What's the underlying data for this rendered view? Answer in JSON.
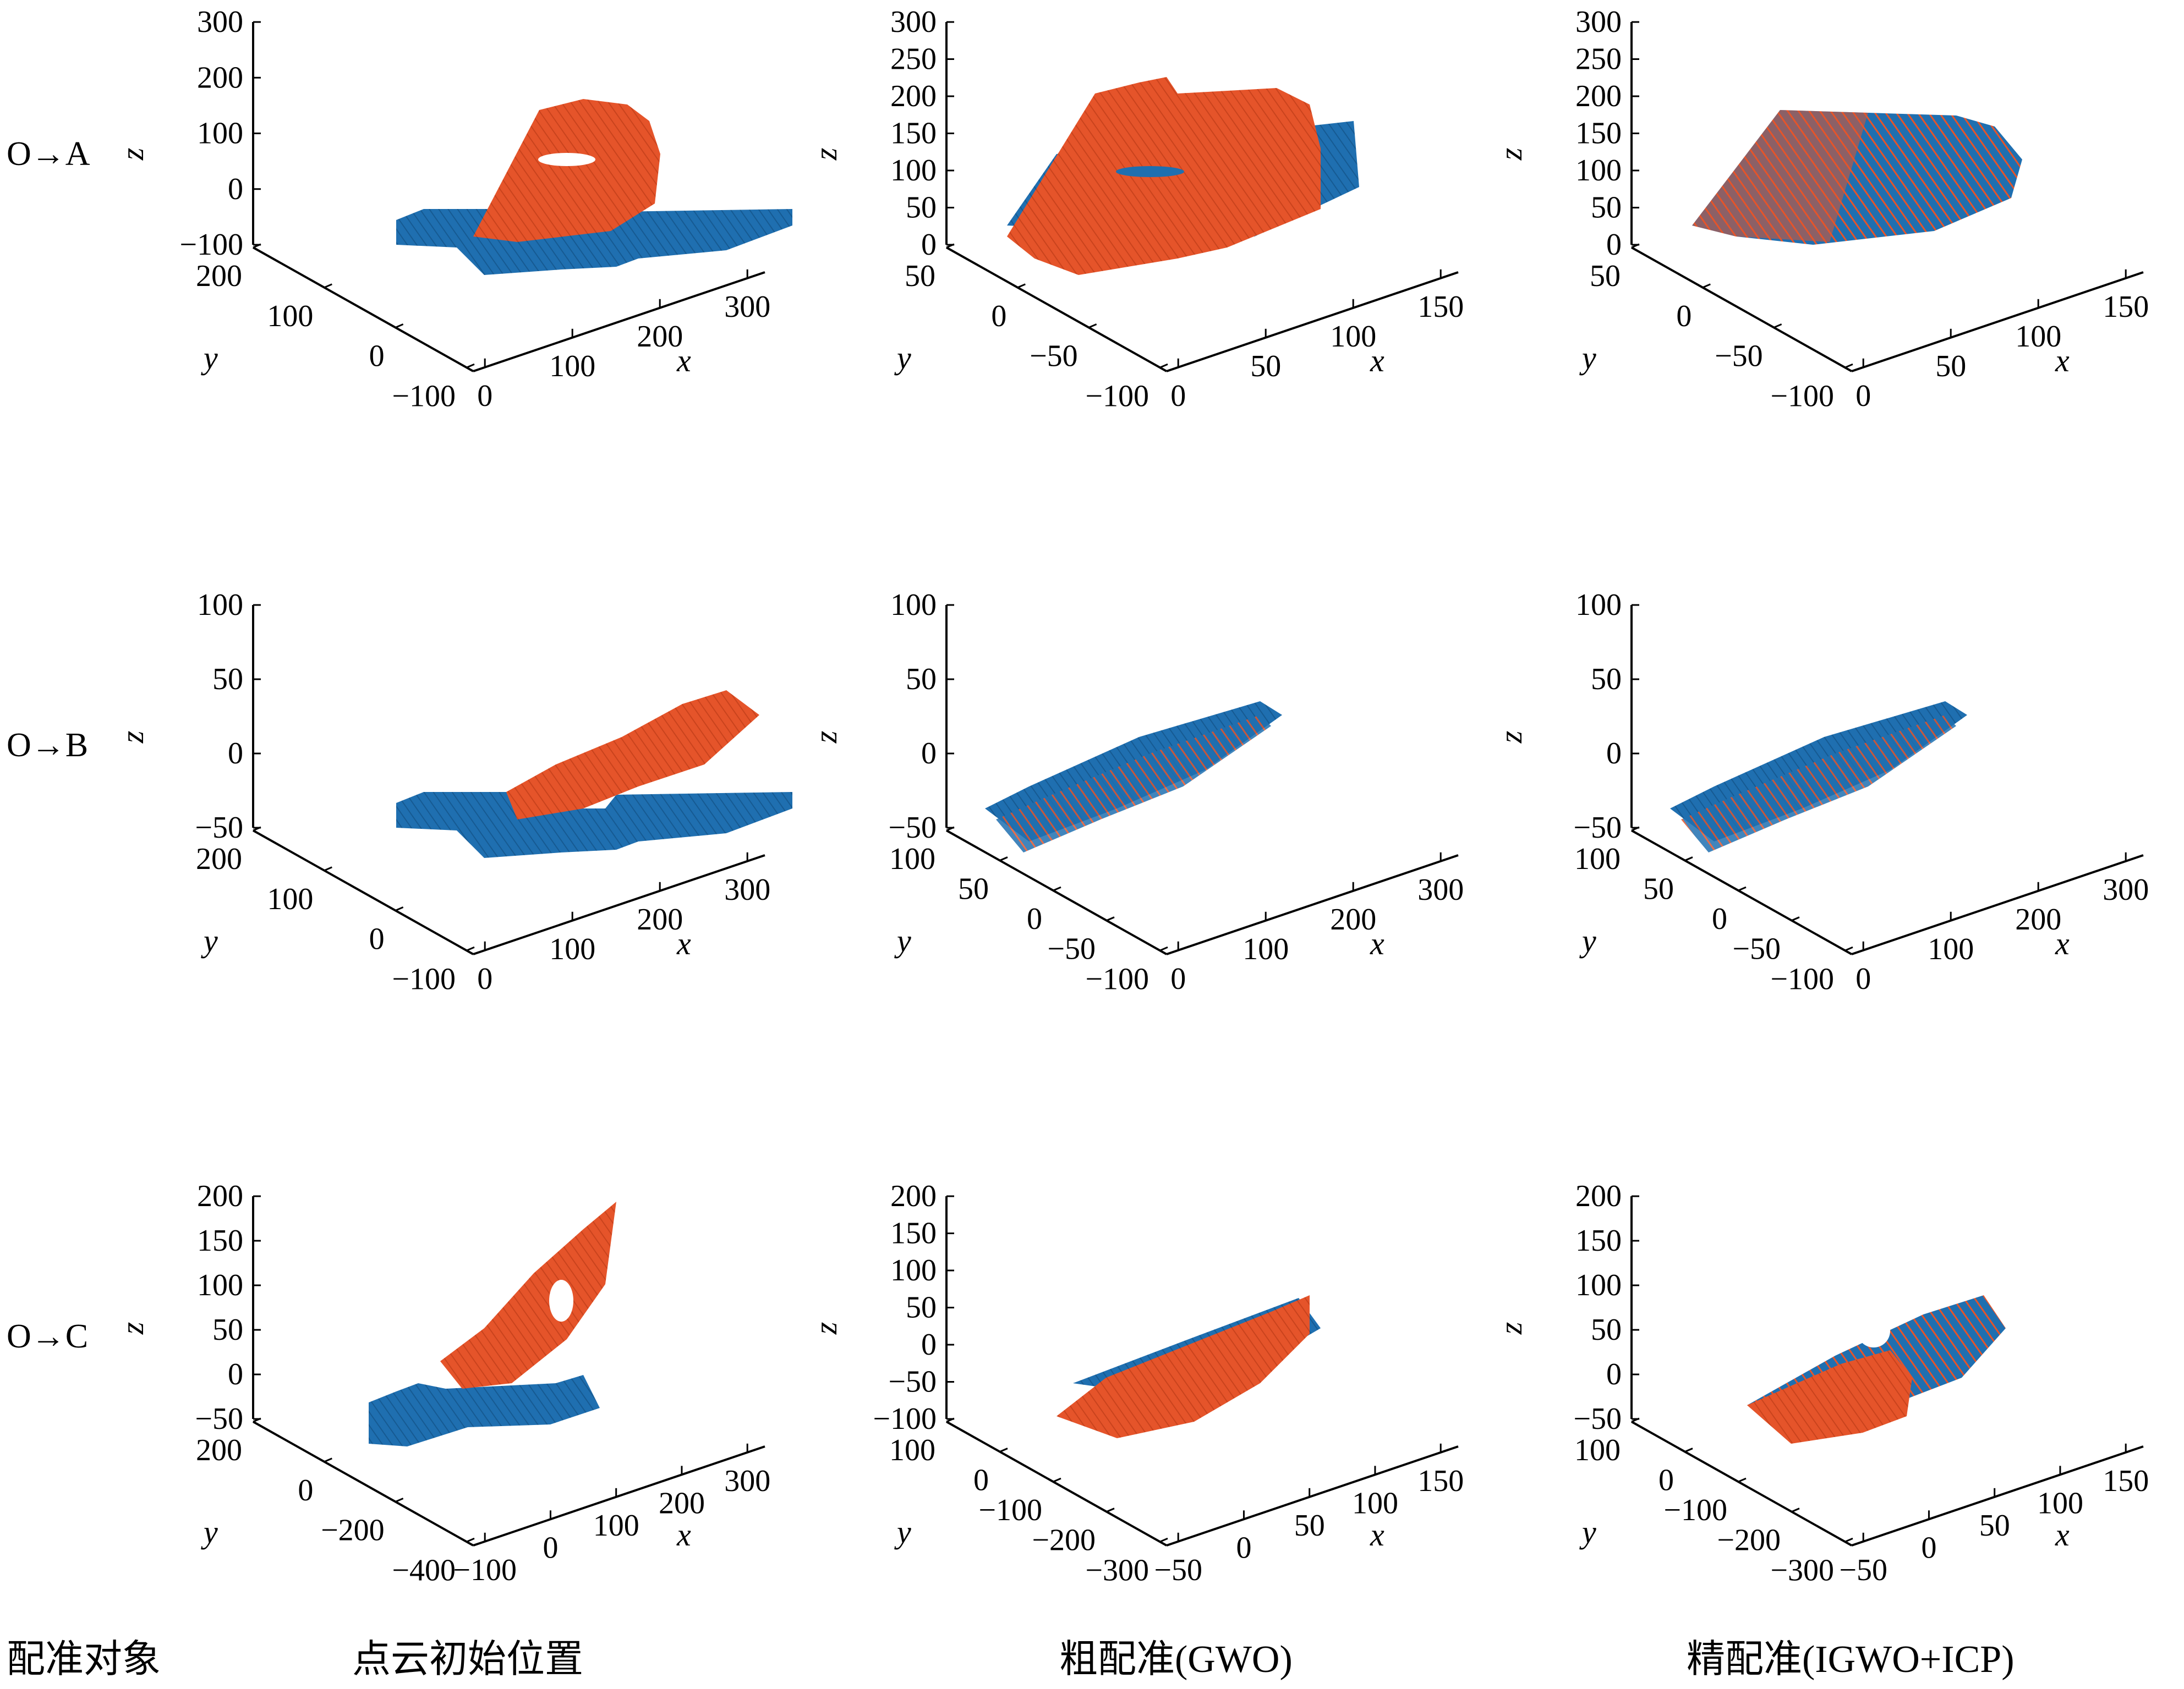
{
  "colors": {
    "blue": "#1f6fb0",
    "orange": "#e5542a",
    "axis": "#000000"
  },
  "row_labels": [
    "O→A",
    "O→B",
    "O→C"
  ],
  "column_captions": [
    "配准对象",
    "点云初始位置",
    "粗配准(GWO)",
    "精配准(IGWO+ICP)"
  ],
  "axis_letters": {
    "x": "x",
    "y": "y",
    "z": "z"
  },
  "panels": [
    {
      "id": "oa-initial",
      "row": 0,
      "col": 0,
      "state": "initial",
      "z_ticks": [
        "300",
        "200",
        "100",
        "0",
        "−100"
      ],
      "y_ticks": [
        "200",
        "100",
        "0",
        "−100"
      ],
      "x_ticks": [
        "0",
        "100",
        "200",
        "300"
      ]
    },
    {
      "id": "oa-coarse",
      "row": 0,
      "col": 1,
      "state": "coarse",
      "z_ticks": [
        "300",
        "250",
        "200",
        "150",
        "100",
        "50",
        "0"
      ],
      "y_ticks": [
        "50",
        "0",
        "−50",
        "−100"
      ],
      "x_ticks": [
        "0",
        "50",
        "100",
        "150"
      ]
    },
    {
      "id": "oa-fine",
      "row": 0,
      "col": 2,
      "state": "fine",
      "z_ticks": [
        "300",
        "250",
        "200",
        "150",
        "100",
        "50",
        "0"
      ],
      "y_ticks": [
        "50",
        "0",
        "−50",
        "−100"
      ],
      "x_ticks": [
        "0",
        "50",
        "100",
        "150"
      ]
    },
    {
      "id": "ob-initial",
      "row": 1,
      "col": 0,
      "state": "initial",
      "z_ticks": [
        "100",
        "50",
        "0",
        "−50"
      ],
      "y_ticks": [
        "200",
        "100",
        "0",
        "−100"
      ],
      "x_ticks": [
        "0",
        "100",
        "200",
        "300"
      ]
    },
    {
      "id": "ob-coarse",
      "row": 1,
      "col": 1,
      "state": "coarse",
      "z_ticks": [
        "100",
        "50",
        "0",
        "−50"
      ],
      "y_ticks": [
        "100",
        "50",
        "0",
        "−50",
        "−100"
      ],
      "x_ticks": [
        "0",
        "100",
        "200",
        "300"
      ]
    },
    {
      "id": "ob-fine",
      "row": 1,
      "col": 2,
      "state": "fine",
      "z_ticks": [
        "100",
        "50",
        "0",
        "−50"
      ],
      "y_ticks": [
        "100",
        "50",
        "0",
        "−50",
        "−100"
      ],
      "x_ticks": [
        "0",
        "100",
        "200",
        "300"
      ]
    },
    {
      "id": "oc-initial",
      "row": 2,
      "col": 0,
      "state": "initial",
      "z_ticks": [
        "200",
        "150",
        "100",
        "50",
        "0",
        "−50"
      ],
      "y_ticks": [
        "200",
        "0",
        "−200",
        "−400"
      ],
      "x_ticks": [
        "−100",
        "0",
        "100",
        "200",
        "300"
      ]
    },
    {
      "id": "oc-coarse",
      "row": 2,
      "col": 1,
      "state": "coarse",
      "z_ticks": [
        "200",
        "150",
        "100",
        "50",
        "0",
        "−50",
        "−100"
      ],
      "y_ticks": [
        "100",
        "0",
        "−100",
        "−200",
        "−300"
      ],
      "x_ticks": [
        "−50",
        "0",
        "50",
        "100",
        "150"
      ]
    },
    {
      "id": "oc-fine",
      "row": 2,
      "col": 2,
      "state": "fine",
      "z_ticks": [
        "200",
        "150",
        "100",
        "50",
        "0",
        "−50"
      ],
      "y_ticks": [
        "100",
        "0",
        "−100",
        "−200",
        "−300"
      ],
      "x_ticks": [
        "−50",
        "0",
        "50",
        "100",
        "150"
      ]
    }
  ]
}
